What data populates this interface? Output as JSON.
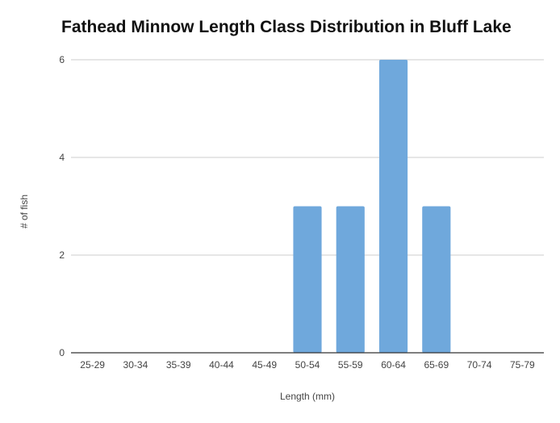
{
  "chart_data": {
    "type": "bar",
    "title": "Fathead Minnow Length Class Distribution in Bluff Lake",
    "xlabel": "Length (mm)",
    "ylabel": "# of fish",
    "categories": [
      "25-29",
      "30-34",
      "35-39",
      "40-44",
      "45-49",
      "50-54",
      "55-59",
      "60-64",
      "65-69",
      "70-74",
      "75-79"
    ],
    "values": [
      0,
      0,
      0,
      0,
      0,
      3,
      3,
      6,
      3,
      0,
      0
    ],
    "ylim": [
      0,
      6
    ],
    "yticks": [
      0,
      2,
      4,
      6
    ],
    "grid": true,
    "bar_color": "#6fa8dc"
  }
}
